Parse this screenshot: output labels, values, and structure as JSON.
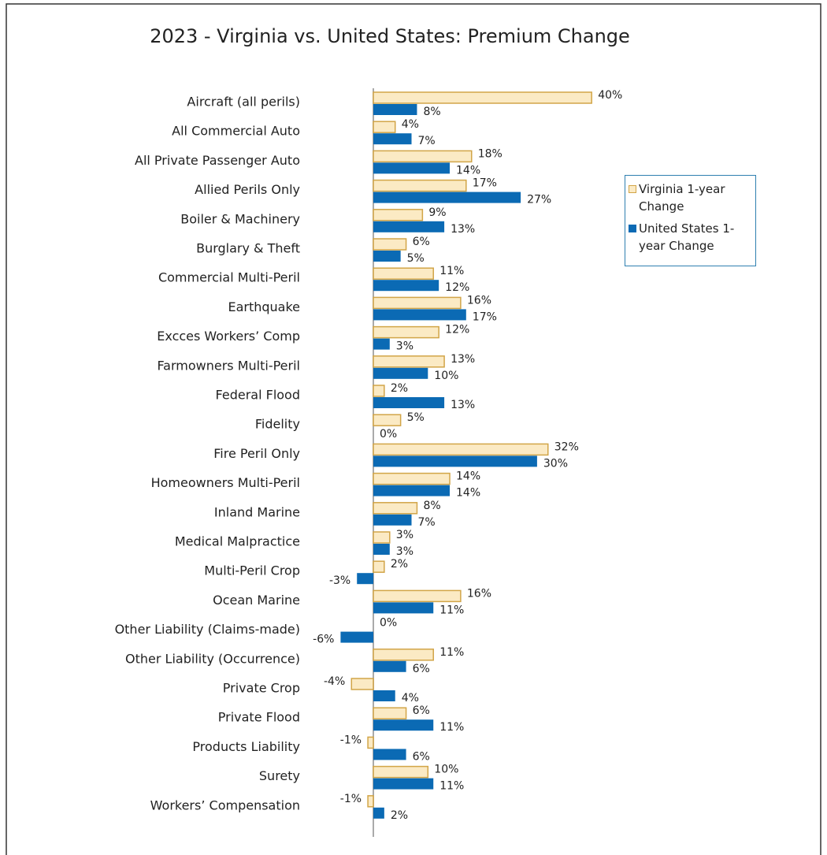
{
  "chart_data": {
    "type": "bar",
    "orientation": "horizontal",
    "title": "2023 - Virginia vs. United States: Premium Change",
    "categories": [
      "Aircraft (all perils)",
      "All Commercial Auto",
      "All Private Passenger Auto",
      "Allied Perils Only",
      "Boiler & Machinery",
      "Burglary &  Theft",
      "Commercial Multi-Peril",
      "Earthquake",
      "Excces Workers’ Comp",
      "Farmowners Multi-Peril",
      "Federal Flood",
      "Fidelity",
      "Fire Peril Only",
      "Homeowners Multi-Peril",
      "Inland Marine",
      "Medical Malpractice",
      "Multi-Peril Crop",
      "Ocean Marine",
      "Other Liability (Claims-made)",
      "Other Liability (Occurrence)",
      "Private Crop",
      "Private Flood",
      "Products Liability",
      "Surety",
      "Workers’ Compensation"
    ],
    "series": [
      {
        "name": "Virginia 1-year Change",
        "color": "#fbeac4",
        "border_color": "#d2a548",
        "values": [
          40,
          4,
          18,
          17,
          9,
          6,
          11,
          16,
          12,
          13,
          2,
          5,
          32,
          14,
          8,
          3,
          2,
          16,
          0,
          11,
          -4,
          6,
          -1,
          10,
          -1
        ],
        "value_labels": [
          "40%",
          "4%",
          "18%",
          "17%",
          "9%",
          "6%",
          "11%",
          "16%",
          "12%",
          "13%",
          "2%",
          "5%",
          "32%",
          "14%",
          "8%",
          "3%",
          "2%",
          "16%",
          "0%",
          "11%",
          "-4%",
          "6%",
          "-1%",
          "10%",
          "-1%"
        ]
      },
      {
        "name": "United States 1-year Change",
        "color": "#0b6ab4",
        "values": [
          8,
          7,
          14,
          27,
          13,
          5,
          12,
          17,
          3,
          10,
          13,
          0,
          30,
          14,
          7,
          3,
          -3,
          11,
          -6,
          6,
          4,
          11,
          6,
          11,
          2
        ],
        "value_labels": [
          "8%",
          "7%",
          "14%",
          "27%",
          "13%",
          "5%",
          "12%",
          "17%",
          "3%",
          "10%",
          "13%",
          "0%",
          "30%",
          "14%",
          "7%",
          "3%",
          "-3%",
          "11%",
          "-6%",
          "6%",
          "4%",
          "11%",
          "6%",
          "11%",
          "2%"
        ]
      }
    ],
    "legend": "right"
  }
}
